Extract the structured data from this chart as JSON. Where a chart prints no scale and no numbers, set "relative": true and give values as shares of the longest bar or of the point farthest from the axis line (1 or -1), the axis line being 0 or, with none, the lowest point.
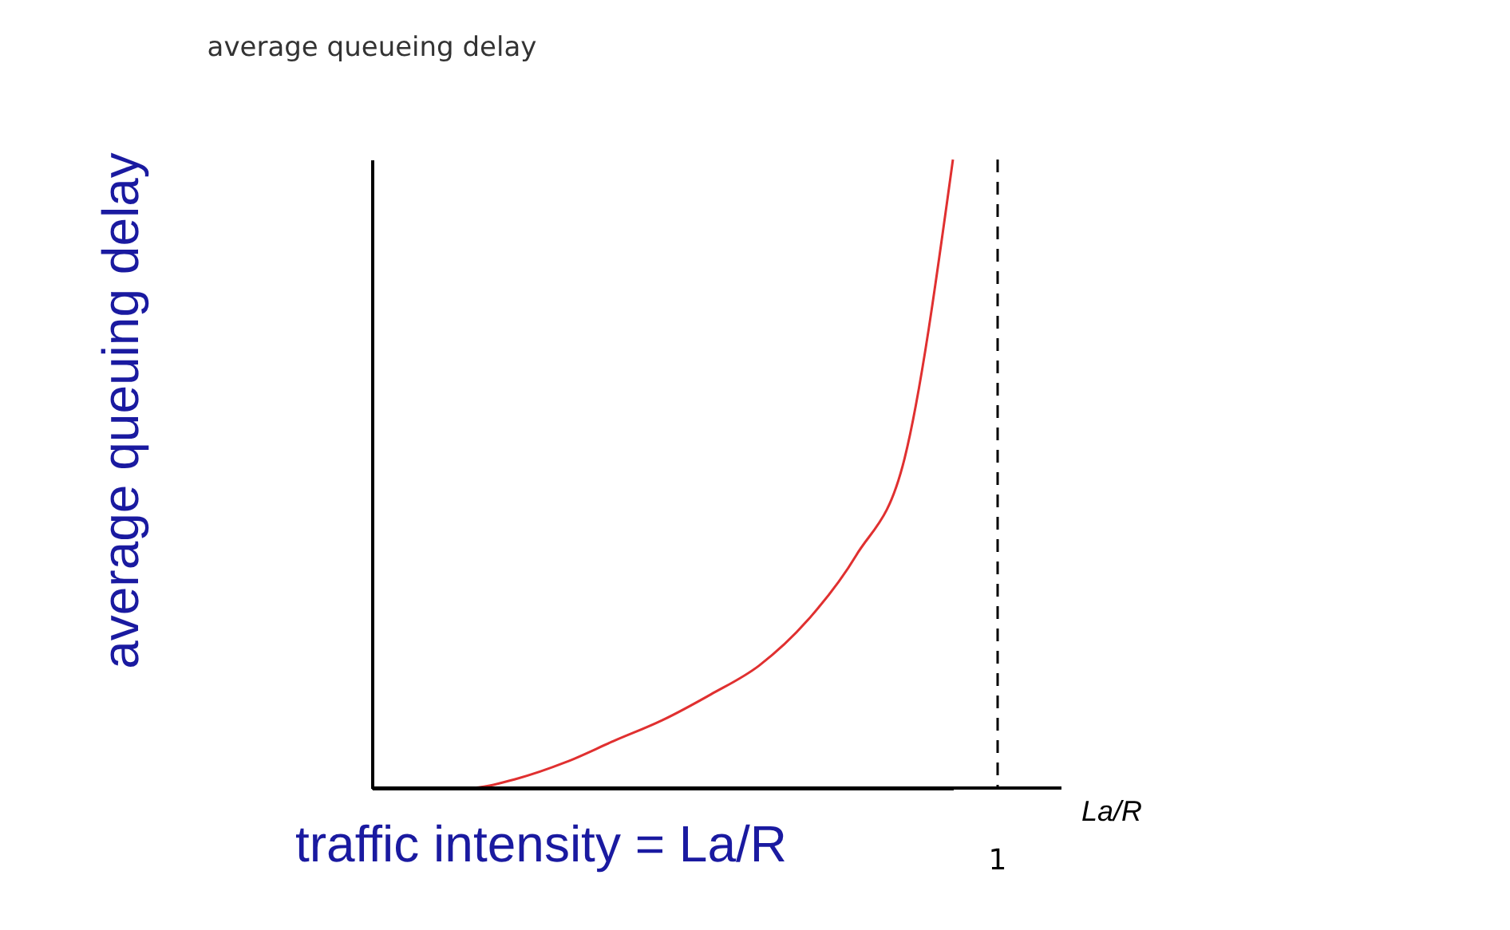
{
  "chart_data": {
    "type": "line",
    "relative": true,
    "categories": [
      null,
      null,
      null,
      null,
      null,
      null,
      null,
      null,
      null,
      null,
      null,
      null,
      null
    ],
    "series": [
      {
        "color": "#e03030",
        "values": [
          0,
          0,
          0,
          0.015,
          0.041,
          0.075,
          0.108,
          0.149,
          0.195,
          0.267,
          0.37,
          0.524,
          1
        ]
      }
    ],
    "xlabel": "La/R",
    "ylabel": "average queuing delay",
    "annotations": [
      "average queueing delay",
      "traffic intensity = La/R",
      "1"
    ],
    "grid": false,
    "legend": false,
    "marker": "none",
    "line_style": "solid"
  }
}
